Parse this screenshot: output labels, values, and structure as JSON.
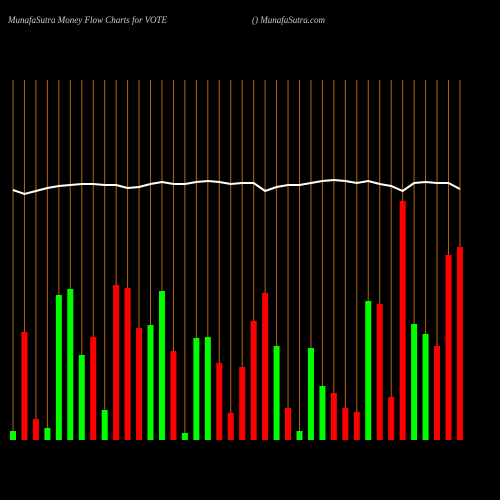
{
  "chart_data": {
    "type": "bar",
    "title": "MunafaSutra  Money Flow  Charts for VOTE",
    "subtitle": "() MunafaSutra.com",
    "categories": [
      null,
      null,
      null,
      null,
      null,
      null,
      null,
      null,
      null,
      null,
      null,
      null,
      null,
      null,
      null,
      null,
      null,
      null,
      null,
      null,
      null,
      null,
      null,
      null,
      null,
      null,
      null,
      null,
      null,
      null,
      null,
      null,
      null,
      null,
      null,
      null,
      null,
      null,
      null,
      null
    ],
    "series": [
      {
        "type": "bar",
        "values": [
          9,
          108,
          21,
          12,
          145,
          151,
          85,
          103,
          30,
          155,
          152,
          112,
          115,
          149,
          89,
          7,
          102,
          103,
          77,
          27,
          73,
          119,
          147,
          94,
          32,
          9,
          92,
          54,
          47,
          32,
          28,
          139,
          136,
          43,
          239,
          116,
          106,
          94,
          185,
          193
        ],
        "colors": [
          "#00ff00",
          "#ff0000",
          "#ff0000",
          "#00ff00",
          "#00ff00",
          "#00ff00",
          "#00ff00",
          "#ff0000",
          "#00ff00",
          "#ff0000",
          "#ff0000",
          "#ff0000",
          "#00ff00",
          "#00ff00",
          "#ff0000",
          "#00ff00",
          "#00ff00",
          "#00ff00",
          "#ff0000",
          "#ff0000",
          "#ff0000",
          "#ff0000",
          "#ff0000",
          "#00ff00",
          "#ff0000",
          "#00ff00",
          "#00ff00",
          "#00ff00",
          "#ff0000",
          "#ff0000",
          "#ff0000",
          "#00ff00",
          "#ff0000",
          "#ff0000",
          "#ff0000",
          "#00ff00",
          "#00ff00",
          "#ff0000",
          "#ff0000",
          "#ff0000"
        ]
      },
      {
        "type": "line",
        "color": "#ffffff",
        "values": [
          250,
          246,
          249,
          252,
          254,
          255,
          256,
          256,
          255,
          255,
          252,
          253,
          256,
          258,
          256,
          256,
          258,
          259,
          258,
          256,
          257,
          257,
          249,
          253,
          255,
          255,
          257,
          259,
          260,
          259,
          257,
          259,
          256,
          254,
          249,
          257,
          258,
          257,
          257,
          251
        ]
      }
    ],
    "gridline_color": "#b8660b",
    "ylim": [
      0,
      360
    ]
  }
}
